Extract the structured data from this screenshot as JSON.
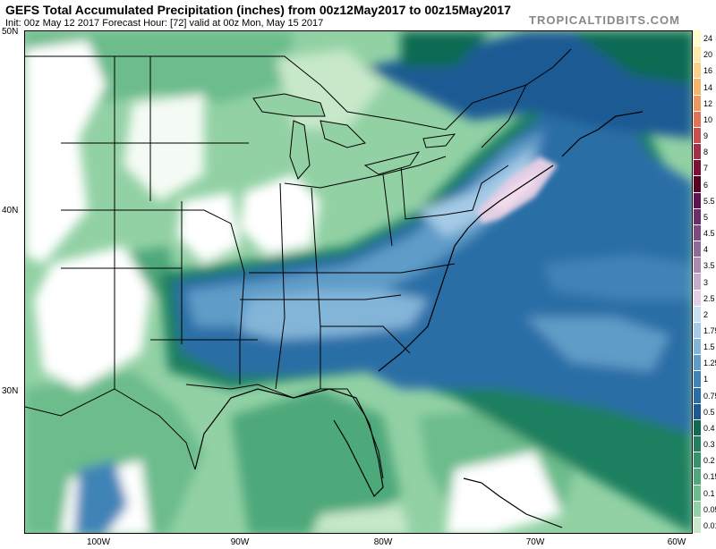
{
  "header": {
    "title": "GEFS Total Accumulated Precipitation (inches) from 00z12May2017 to 00z15May2017",
    "subtitle": "Init: 00z May 12 2017   Forecast Hour: [72]   valid at 00z Mon, May 15 2017",
    "brand": "TROPICALTIDBITS.COM"
  },
  "axes": {
    "lat_labels": [
      "50N",
      "40N",
      "30N"
    ],
    "lon_labels": [
      "100W",
      "90W",
      "80W",
      "70W",
      "60W"
    ]
  },
  "colorbar": {
    "levels": [
      "24",
      "20",
      "16",
      "14",
      "12",
      "10",
      "9",
      "8",
      "7",
      "6",
      "5.5",
      "5",
      "4.5",
      "4",
      "3.5",
      "3",
      "2.5",
      "2",
      "1.75",
      "1.5",
      "1.25",
      "1",
      "0.75",
      "0.5",
      "0.4",
      "0.3",
      "0.2",
      "0.15",
      "0.1",
      "0.05",
      "0.01"
    ],
    "colors": [
      "#fffccc",
      "#ffe9a8",
      "#fbd088",
      "#f5b46e",
      "#ee975e",
      "#e17356",
      "#c8504f",
      "#a52f47",
      "#7c1236",
      "#5a0020",
      "#5c1452",
      "#6b2d6b",
      "#7d4a82",
      "#916a98",
      "#a98bb0",
      "#c4aecb",
      "#e2cfe5",
      "#c8e0f1",
      "#a5cbe6",
      "#83b5d9",
      "#5f9cc8",
      "#3f84b7",
      "#2a6ea6",
      "#1b5a94",
      "#0e6a52",
      "#1f7f5e",
      "#33946b",
      "#4ea87a",
      "#6cbc8c",
      "#92d1a4",
      "#c7e8c9"
    ]
  }
}
